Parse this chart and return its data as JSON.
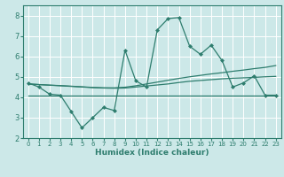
{
  "x": [
    0,
    1,
    2,
    3,
    4,
    5,
    6,
    7,
    8,
    9,
    10,
    11,
    12,
    13,
    14,
    15,
    16,
    17,
    18,
    19,
    20,
    21,
    22,
    23
  ],
  "line_main": [
    4.7,
    4.5,
    4.15,
    4.1,
    3.3,
    2.5,
    3.0,
    3.5,
    3.35,
    6.3,
    4.8,
    4.5,
    7.3,
    7.85,
    7.9,
    6.5,
    6.1,
    6.55,
    5.8,
    4.5,
    4.7,
    5.05,
    4.1,
    4.1
  ],
  "line_flat": [
    4.1,
    4.1,
    4.1,
    4.1,
    4.1,
    4.1,
    4.1,
    4.1,
    4.1,
    4.1,
    4.1,
    4.1,
    4.1,
    4.1,
    4.1,
    4.1,
    4.1,
    4.1,
    4.1,
    4.1,
    4.1,
    4.1,
    4.1,
    4.1
  ],
  "line_rise1": [
    4.65,
    4.62,
    4.59,
    4.56,
    4.53,
    4.5,
    4.47,
    4.45,
    4.44,
    4.45,
    4.5,
    4.55,
    4.6,
    4.65,
    4.72,
    4.78,
    4.82,
    4.86,
    4.9,
    4.93,
    4.95,
    4.97,
    5.0,
    5.02
  ],
  "line_rise2": [
    4.65,
    4.62,
    4.59,
    4.57,
    4.54,
    4.51,
    4.48,
    4.46,
    4.46,
    4.49,
    4.56,
    4.65,
    4.74,
    4.83,
    4.92,
    5.0,
    5.07,
    5.14,
    5.2,
    5.27,
    5.33,
    5.4,
    5.46,
    5.55
  ],
  "color": "#2e7d6e",
  "bg_color": "#cce8e8",
  "grid_color": "#ffffff",
  "xlabel": "Humidex (Indice chaleur)",
  "ylim": [
    2,
    8.5
  ],
  "xlim": [
    -0.5,
    23.5
  ],
  "yticks": [
    2,
    3,
    4,
    5,
    6,
    7,
    8
  ],
  "xticks": [
    0,
    1,
    2,
    3,
    4,
    5,
    6,
    7,
    8,
    9,
    10,
    11,
    12,
    13,
    14,
    15,
    16,
    17,
    18,
    19,
    20,
    21,
    22,
    23
  ]
}
